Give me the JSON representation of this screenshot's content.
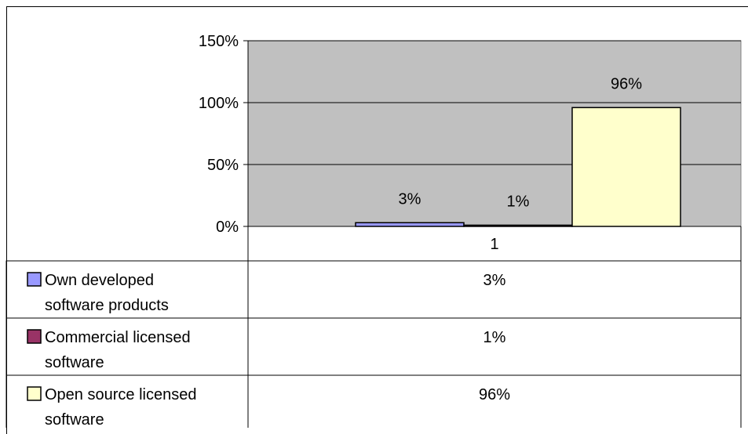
{
  "chart_data": {
    "type": "bar",
    "categories": [
      "1"
    ],
    "series": [
      {
        "name": "Own developed software products",
        "values": [
          3
        ],
        "color": "#9999ff"
      },
      {
        "name": "Commercial licensed software",
        "values": [
          1
        ],
        "color": "#993366"
      },
      {
        "name": "Open source licensed software",
        "values": [
          96
        ],
        "color": "#ffffcc"
      }
    ],
    "data_labels": [
      "3%",
      "1%",
      "96%"
    ],
    "yticks": [
      "0%",
      "50%",
      "100%",
      "150%"
    ],
    "ylim": [
      0,
      150
    ],
    "plot_background": "#c0c0c0",
    "grid": true,
    "legend": "data table below chart",
    "table_rows": [
      {
        "legend_lines": [
          "Own developed",
          "software products"
        ],
        "value": "3%"
      },
      {
        "legend_lines": [
          "Commercial licensed",
          "software"
        ],
        "value": "1%"
      },
      {
        "legend_lines": [
          "Open source licensed",
          "software"
        ],
        "value": "96%"
      }
    ],
    "title": "",
    "xlabel": "",
    "ylabel": ""
  }
}
